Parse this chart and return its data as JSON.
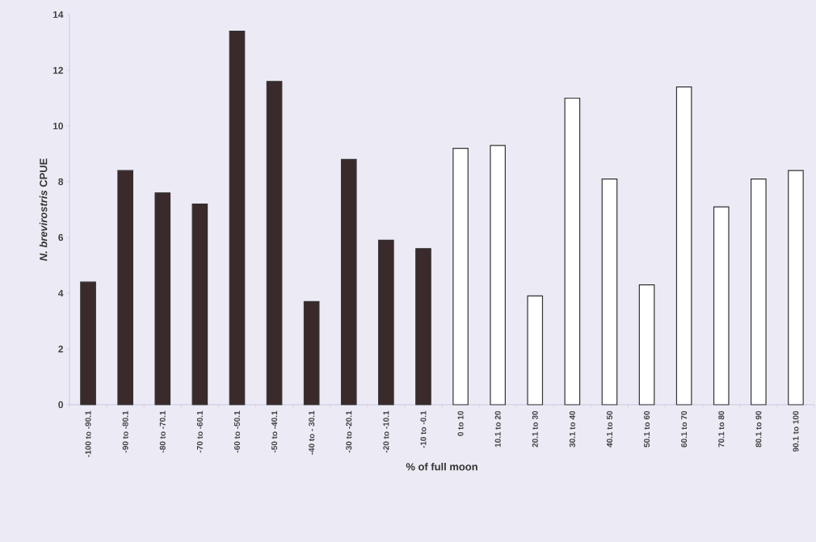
{
  "chart_data": {
    "type": "bar",
    "xlabel": "% of full moon",
    "ylabel": "*N. brevirostris* CPUE",
    "categories": [
      "-100 to -90.1",
      "-90 to -80.1",
      "-80 to -70.1",
      "-70 to -60.1",
      "-60 to -50.1",
      "-50 to -40.1",
      "-40 to - 30.1",
      "-30 to -20.1",
      "-20 to -10.1",
      "-10 to -0.1",
      "0 to 10",
      "10.1 to 20",
      "20.1 to 30",
      "30.1 to 40",
      "40.1 to 50",
      "50.1 to 60",
      "60.1 to 70",
      "70.1 to 80",
      "80.1 to 90",
      "90.1 to 100"
    ],
    "values": [
      4.4,
      8.4,
      7.6,
      7.2,
      13.4,
      11.6,
      3.7,
      8.8,
      5.9,
      5.6,
      9.2,
      9.3,
      3.9,
      11.0,
      8.1,
      4.3,
      11.4,
      7.1,
      8.1,
      8.4
    ],
    "colors": [
      "#3b2a2b",
      "#3b2a2b",
      "#3b2a2b",
      "#3b2a2b",
      "#3b2a2b",
      "#3b2a2b",
      "#3b2a2b",
      "#3b2a2b",
      "#3b2a2b",
      "#3b2a2b",
      "#ffffff",
      "#ffffff",
      "#ffffff",
      "#ffffff",
      "#ffffff",
      "#ffffff",
      "#ffffff",
      "#ffffff",
      "#ffffff",
      "#ffffff"
    ],
    "ylim": [
      0,
      14
    ],
    "yticks": [
      0,
      2,
      4,
      6,
      8,
      10,
      12,
      14
    ],
    "grid": false
  }
}
